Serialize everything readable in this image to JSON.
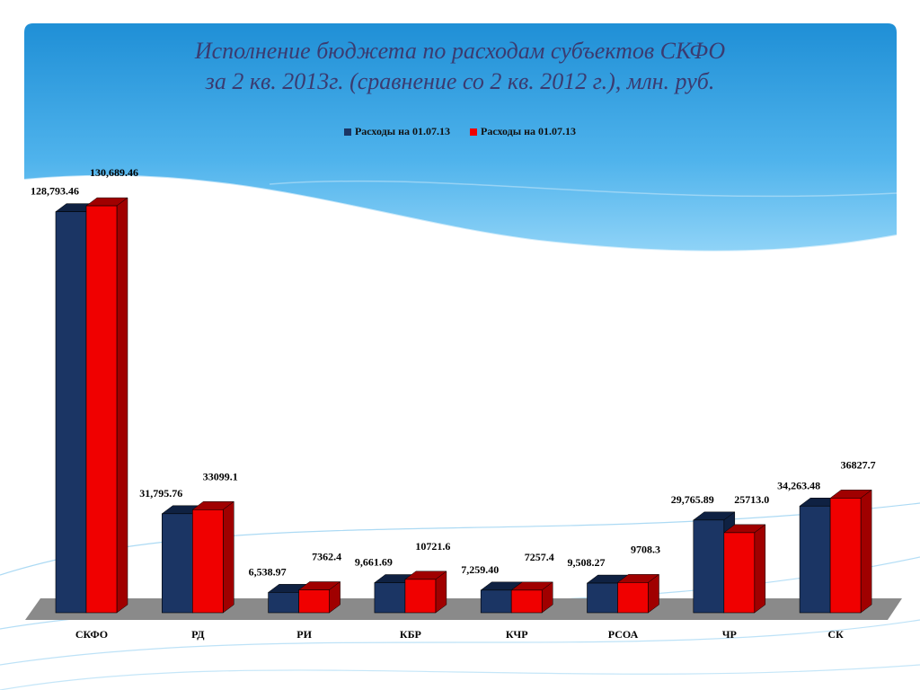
{
  "title_line1": "Исполнение бюджета по расходам субъектов СКФО",
  "title_line2": "за 2 кв. 2013г. (сравнение со 2 кв. 2012 г.), млн. руб.",
  "colors": {
    "series1": "#1b3564",
    "series1_dark": "#0f2142",
    "series2": "#f00000",
    "series2_dark": "#a00000",
    "floor": "#8a8a8a",
    "title": "#3b3b70"
  },
  "chart_data": {
    "type": "bar",
    "categories": [
      "СКФО",
      "РД",
      "РИ",
      "КБР",
      "КЧР",
      "РСОА",
      "ЧР",
      "СК"
    ],
    "series": [
      {
        "name": "Расходы на 01.07.13",
        "values": [
          128793.46,
          31795.76,
          6538.97,
          9661.69,
          7259.4,
          9508.27,
          29765.89,
          34263.48
        ],
        "labels": [
          "128,793.46",
          "31,795.76",
          "6,538.97",
          "9,661.69",
          "7,259.40",
          "9,508.27",
          "29,765.89",
          "34,263.48"
        ]
      },
      {
        "name": "Расходы на 01.07.13",
        "values": [
          130689.46,
          33099.1,
          7362.4,
          10721.6,
          7257.4,
          9708.3,
          25713.0,
          36827.7
        ],
        "labels": [
          "130,689.46",
          "33099.1",
          "7362.4",
          "10721.6",
          "7257.4",
          "9708.3",
          "25713.0",
          "36827.7"
        ]
      }
    ],
    "ylim": [
      0,
      131000
    ],
    "grid": false,
    "legend": "top"
  }
}
